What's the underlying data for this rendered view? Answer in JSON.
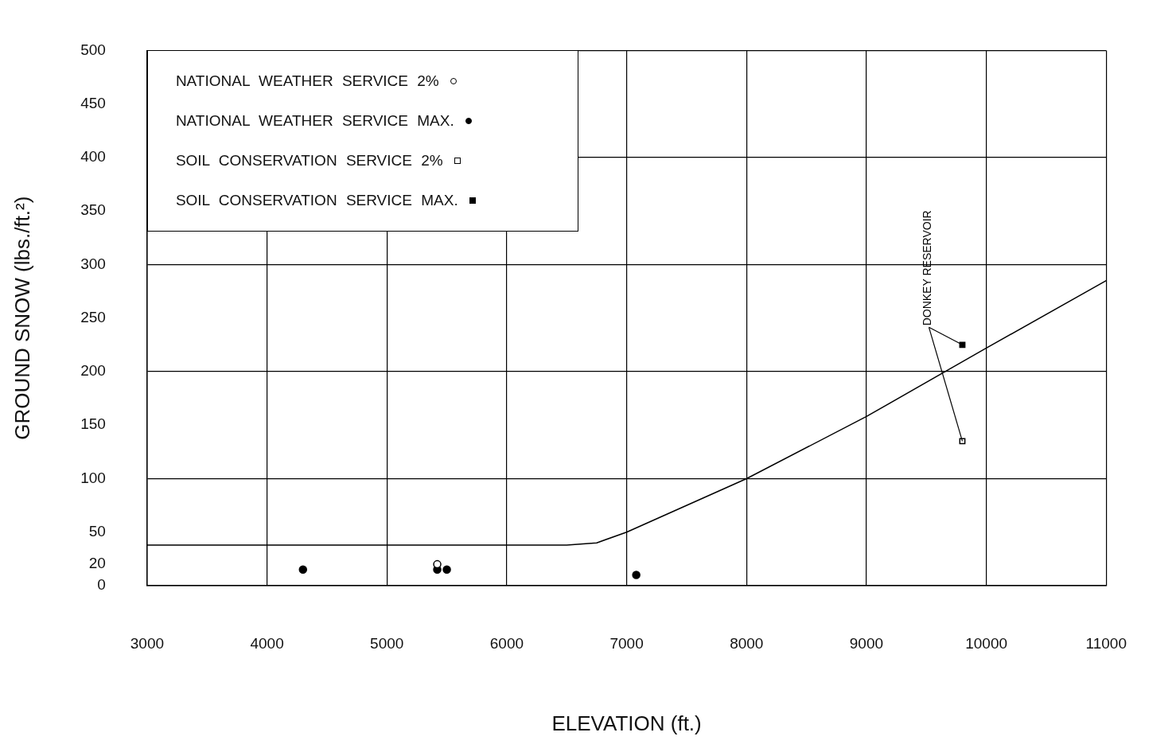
{
  "chart_data": {
    "type": "scatter",
    "xlabel": "ELEVATION (ft.)",
    "ylabel": "GROUND SNOW (lbs./ft.²)",
    "xlim": [
      3000,
      11000
    ],
    "xticks": [
      3000,
      4000,
      5000,
      6000,
      7000,
      8000,
      9000,
      10000,
      11000
    ],
    "ylim": [
      0,
      500
    ],
    "yticks": [
      0,
      20,
      50,
      100,
      150,
      200,
      250,
      300,
      350,
      400,
      450,
      500
    ],
    "grid": true,
    "legend": "top left",
    "series": [
      {
        "name": "NATIONAL WEATHER SERVICE 2%",
        "color": "#ffffff",
        "marker": "circle",
        "x": [
          5420
        ],
        "values": [
          20
        ]
      },
      {
        "name": "NATIONAL WEATHER SERVICE MAX.",
        "color": "#000000",
        "marker": "circle",
        "x": [
          4300,
          5420,
          5500,
          7080
        ],
        "values": [
          15,
          15,
          15,
          10
        ]
      },
      {
        "name": "SOIL CONSERVATION SERVICE 2%",
        "color": "#ffffff",
        "marker": "square",
        "x": [
          9800
        ],
        "values": [
          135
        ]
      },
      {
        "name": "SOIL CONSERVATION SERVICE MAX.",
        "color": "#000000",
        "marker": "square",
        "x": [
          9800
        ],
        "values": [
          225
        ]
      },
      {
        "type": "line",
        "color": "#000000",
        "marker": "none",
        "x": [
          3000,
          6500,
          6750,
          7000,
          8000,
          9000,
          10000,
          11000
        ],
        "values": [
          38,
          38,
          40,
          50,
          100,
          158,
          222,
          285
        ]
      }
    ],
    "annotations": [
      {
        "text": "DONKEY RESERVOIR",
        "x": 9800,
        "y": 225
      }
    ]
  }
}
